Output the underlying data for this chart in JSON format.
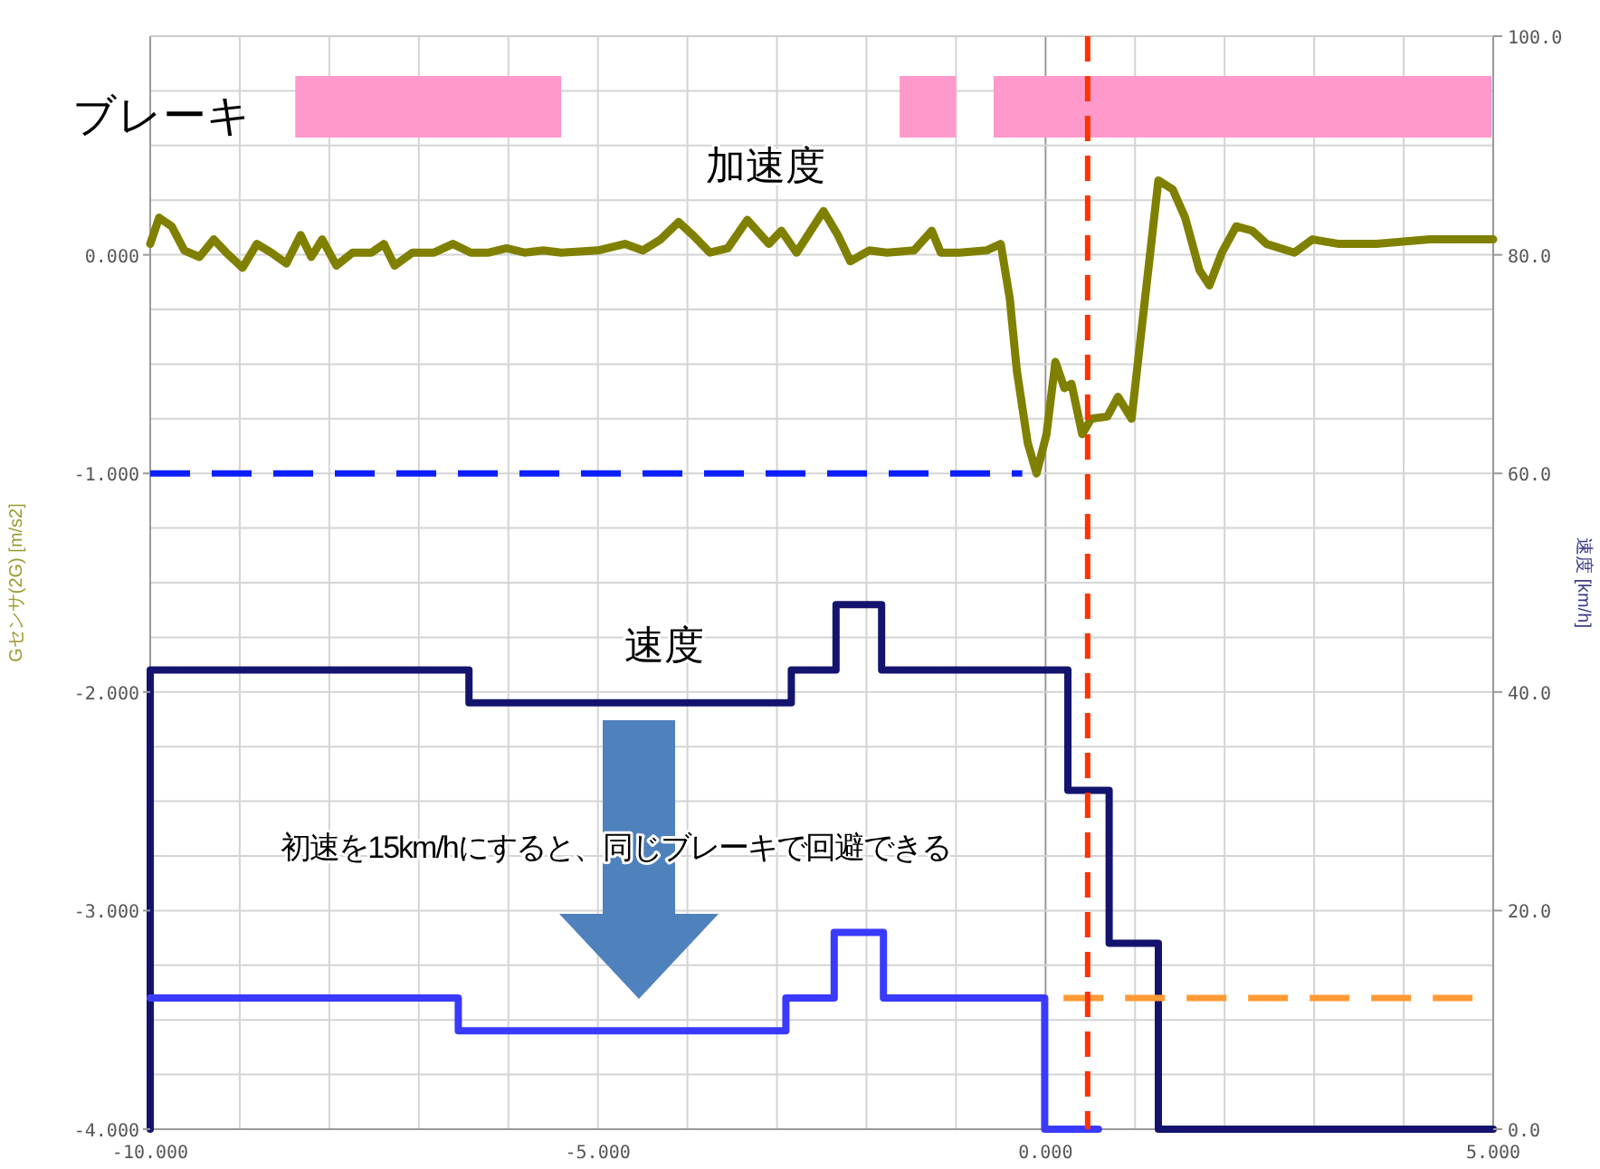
{
  "chart_data": {
    "type": "line",
    "xlim": [
      -10,
      5
    ],
    "xticks": [
      {
        "value": -10,
        "label": "-10.000"
      },
      {
        "value": -9,
        "label": null
      },
      {
        "value": -8,
        "label": null
      },
      {
        "value": -7,
        "label": null
      },
      {
        "value": -6,
        "label": null
      },
      {
        "value": -5,
        "label": "-5.000"
      },
      {
        "value": -4,
        "label": null
      },
      {
        "value": -3,
        "label": null
      },
      {
        "value": -2,
        "label": null
      },
      {
        "value": -1,
        "label": null
      },
      {
        "value": 0,
        "label": "0.000"
      },
      {
        "value": 1,
        "label": null
      },
      {
        "value": 2,
        "label": null
      },
      {
        "value": 3,
        "label": null
      },
      {
        "value": 4,
        "label": null
      },
      {
        "value": 5,
        "label": "5.000"
      }
    ],
    "ylim": [
      -4,
      1
    ],
    "yticks": [
      {
        "value": -4,
        "label": "-4.000"
      },
      {
        "value": -3.75,
        "label": null
      },
      {
        "value": -3.5,
        "label": null
      },
      {
        "value": -3.25,
        "label": null
      },
      {
        "value": -3,
        "label": "-3.000"
      },
      {
        "value": -2.75,
        "label": null
      },
      {
        "value": -2.5,
        "label": null
      },
      {
        "value": -2.25,
        "label": null
      },
      {
        "value": -2,
        "label": "-2.000"
      },
      {
        "value": -1.75,
        "label": null
      },
      {
        "value": -1.5,
        "label": null
      },
      {
        "value": -1.25,
        "label": null
      },
      {
        "value": -1,
        "label": "-1.000"
      },
      {
        "value": -0.75,
        "label": null
      },
      {
        "value": -0.5,
        "label": null
      },
      {
        "value": -0.25,
        "label": null
      },
      {
        "value": 0,
        "label": "0.000"
      },
      {
        "value": 0.25,
        "label": null
      },
      {
        "value": 0.5,
        "label": null
      },
      {
        "value": 0.75,
        "label": null
      },
      {
        "value": 1,
        "label": null
      }
    ],
    "y2lim": [
      0,
      100
    ],
    "y2ticks": [
      {
        "value": 0,
        "label": "0.0"
      },
      {
        "value": 20,
        "label": "20.0"
      },
      {
        "value": 40,
        "label": "40.0"
      },
      {
        "value": 60,
        "label": "60.0"
      },
      {
        "value": 80,
        "label": "80.0"
      },
      {
        "value": 100,
        "label": "100.0"
      }
    ],
    "ylabel": "Gセンサ(2G) [m/s2]",
    "y2label": "速度 [km/h]",
    "grid": true,
    "series": [
      {
        "color": "#808000",
        "x": [
          -10,
          -9.9,
          -9.76,
          -9.62,
          -9.45,
          -9.29,
          -9.15,
          -8.97,
          -8.81,
          -8.65,
          -8.48,
          -8.32,
          -8.2,
          -8.08,
          -7.92,
          -7.74,
          -7.53,
          -7.39,
          -7.27,
          -7.07,
          -6.83,
          -6.62,
          -6.42,
          -6.22,
          -6.02,
          -5.82,
          -5.61,
          -5.41,
          -5.0,
          -4.7,
          -4.5,
          -4.3,
          -4.1,
          -3.94,
          -3.75,
          -3.55,
          -3.33,
          -3.09,
          -2.95,
          -2.78,
          -2.48,
          -2.32,
          -2.18,
          -1.97,
          -1.77,
          -1.47,
          -1.27,
          -1.17,
          -0.96,
          -0.66,
          -0.5,
          -0.4,
          -0.32,
          -0.2,
          -0.1,
          0.01,
          0.11,
          0.21,
          0.29,
          0.41,
          0.51,
          0.69,
          0.81,
          0.96,
          1.1,
          1.26,
          1.42,
          1.56,
          1.72,
          1.83,
          1.97,
          2.13,
          2.31,
          2.47,
          2.78,
          2.98,
          3.28,
          3.69,
          4.29,
          5
        ],
        "values": [
          0.05,
          0.17,
          0.13,
          0.02,
          -0.01,
          0.07,
          0.01,
          -0.06,
          0.05,
          0.01,
          -0.04,
          0.09,
          -0.01,
          0.07,
          -0.05,
          0.01,
          0.01,
          0.05,
          -0.05,
          0.01,
          0.01,
          0.05,
          0.01,
          0.01,
          0.03,
          0.01,
          0.02,
          0.01,
          0.02,
          0.05,
          0.02,
          0.07,
          0.15,
          0.09,
          0.01,
          0.03,
          0.16,
          0.05,
          0.11,
          0.01,
          0.2,
          0.09,
          -0.03,
          0.02,
          0.01,
          0.02,
          0.11,
          0.01,
          0.01,
          0.02,
          0.05,
          -0.2,
          -0.53,
          -0.86,
          -1.0,
          -0.82,
          -0.49,
          -0.61,
          -0.59,
          -0.82,
          -0.75,
          -0.74,
          -0.65,
          -0.75,
          -0.24,
          0.34,
          0.3,
          0.17,
          -0.07,
          -0.14,
          0.01,
          0.13,
          0.11,
          0.05,
          0.01,
          0.07,
          0.05,
          0.05,
          0.07,
          0.07
        ]
      },
      {
        "type": "step",
        "axis": "y2",
        "color": "#14146e",
        "x": [
          -10,
          -10,
          -6.44,
          -2.84,
          -2.34,
          -1.83,
          0.25,
          0.71,
          1.26,
          5
        ],
        "values": [
          0,
          42,
          39,
          42,
          48,
          42,
          31,
          17,
          0,
          0
        ]
      },
      {
        "type": "step",
        "axis": "y2",
        "color": "#3a3aff",
        "x": [
          -10,
          -6.56,
          -2.9,
          -2.36,
          -1.81,
          -0.01,
          0.59
        ],
        "values": [
          12,
          9,
          12,
          18,
          12,
          0,
          0
        ]
      },
      {
        "type": "line",
        "line_style": "dashed",
        "color": "#0a1eff",
        "x": [
          -10,
          -0.26
        ],
        "values": [
          -1,
          -1
        ]
      },
      {
        "type": "line",
        "axis": "y2",
        "line_style": "dashed",
        "color": "#ff9933",
        "x": [
          0.2,
          5
        ],
        "values": [
          12,
          12
        ]
      }
    ],
    "ref_lines": [
      {
        "axis": "x",
        "value": 0.47,
        "color": "#ff3300",
        "line_style": "dashed"
      }
    ],
    "bands": [
      {
        "axis": "x",
        "from": -8.38,
        "to": -5.41,
        "color": "#ff99cc",
        "label": "ブレーキ"
      },
      {
        "axis": "x",
        "from": -1.63,
        "to": -1.0,
        "color": "#ff99cc"
      },
      {
        "axis": "x",
        "from": -0.58,
        "to": 4.98,
        "color": "#ff99cc"
      }
    ],
    "annotations": [
      "加速度",
      "速度",
      "初速を15km/hにすると、同じブレーキで回避できる"
    ]
  }
}
